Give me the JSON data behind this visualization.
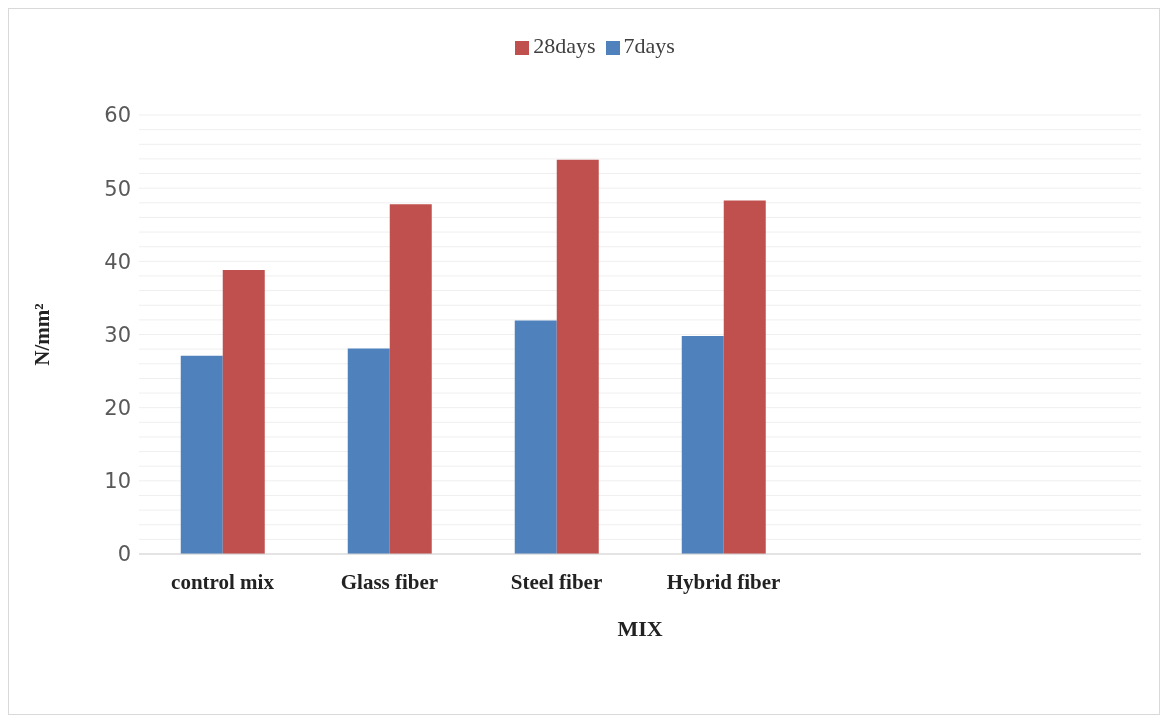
{
  "chart_data": {
    "type": "bar",
    "xlabel": "MIX",
    "ylabel": "N/mm²",
    "categories": [
      "control mix",
      "Glass fiber",
      "Steel fiber",
      "Hybrid fiber",
      null,
      null
    ],
    "series": [
      {
        "name": "7days",
        "color": "#4f81bd",
        "values": [
          27.1,
          28.1,
          31.9,
          29.8,
          null,
          null
        ]
      },
      {
        "name": "28days",
        "color": "#c0504d",
        "values": [
          38.8,
          47.8,
          53.9,
          48.3,
          null,
          null
        ]
      }
    ],
    "ylim": [
      0,
      60
    ],
    "yticks": [
      0,
      {
        "value": 2,
        "label": null
      },
      {
        "value": 4,
        "label": null
      },
      {
        "value": 6,
        "label": null
      },
      {
        "value": 8,
        "label": null
      },
      10,
      {
        "value": 12,
        "label": null
      },
      {
        "value": 14,
        "label": null
      },
      {
        "value": 16,
        "label": null
      },
      {
        "value": 18,
        "label": null
      },
      20,
      {
        "value": 22,
        "label": null
      },
      {
        "value": 24,
        "label": null
      },
      {
        "value": 26,
        "label": null
      },
      {
        "value": 28,
        "label": null
      },
      30,
      {
        "value": 32,
        "label": null
      },
      {
        "value": 34,
        "label": null
      },
      {
        "value": 36,
        "label": null
      },
      {
        "value": 38,
        "label": null
      },
      40,
      {
        "value": 42,
        "label": null
      },
      {
        "value": 44,
        "label": null
      },
      {
        "value": 46,
        "label": null
      },
      {
        "value": 48,
        "label": null
      },
      50,
      {
        "value": 52,
        "label": null
      },
      {
        "value": 54,
        "label": null
      },
      {
        "value": 56,
        "label": null
      },
      {
        "value": 58,
        "label": null
      },
      60
    ],
    "grid": "y",
    "legend": "top"
  }
}
